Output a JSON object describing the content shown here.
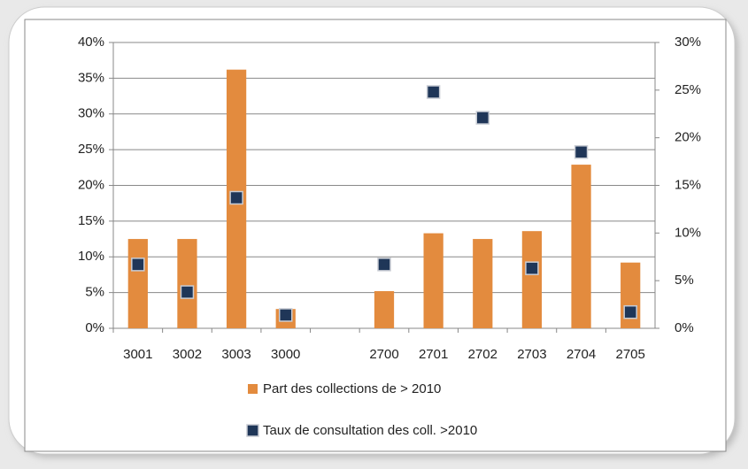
{
  "chart_data": {
    "type": "bar",
    "categories": [
      "3001",
      "3002",
      "3003",
      "3000",
      null,
      "2700",
      "2701",
      "2702",
      "2703",
      "2704",
      "2705"
    ],
    "series": [
      {
        "name": "Part des collections de > 2010",
        "type": "bar",
        "color": "#e38b3e",
        "values": [
          12.5,
          12.5,
          36.2,
          2.7,
          null,
          5.2,
          13.3,
          12.5,
          13.6,
          22.9,
          9.2
        ]
      },
      {
        "name": "Taux de consultation des coll. >2010",
        "type": "scatter",
        "axis": "y2",
        "color": "#1f3658",
        "values": [
          6.7,
          3.8,
          13.7,
          1.4,
          null,
          6.7,
          24.8,
          22.1,
          6.3,
          18.5,
          1.7
        ]
      }
    ],
    "ylim": [
      0,
      40
    ],
    "yticks": [
      {
        "value": 0,
        "label": "0%"
      },
      {
        "value": 5,
        "label": "5%"
      },
      {
        "value": 10,
        "label": "10%"
      },
      {
        "value": 15,
        "label": "15%"
      },
      {
        "value": 20,
        "label": "20%"
      },
      {
        "value": 25,
        "label": "25%"
      },
      {
        "value": 30,
        "label": "30%"
      },
      {
        "value": 35,
        "label": "35%"
      },
      {
        "value": 40,
        "label": "40%"
      }
    ],
    "y2lim": [
      0,
      30
    ],
    "y2ticks": [
      {
        "value": 0,
        "label": "0%"
      },
      {
        "value": 5,
        "label": "5%"
      },
      {
        "value": 10,
        "label": "10%"
      },
      {
        "value": 15,
        "label": "15%"
      },
      {
        "value": 20,
        "label": "20%"
      },
      {
        "value": 25,
        "label": "25%"
      },
      {
        "value": 30,
        "label": "30%"
      }
    ],
    "grid": true,
    "legend": "bottom"
  }
}
